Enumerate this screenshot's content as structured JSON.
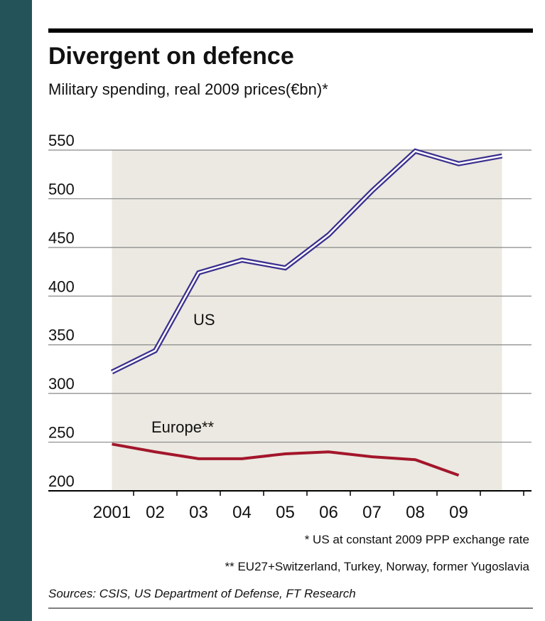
{
  "chart_data": {
    "type": "line",
    "title": "Divergent on defence",
    "subtitle": "Military spending, real 2009 prices(€bn)*",
    "categories": [
      "2001",
      "02",
      "03",
      "04",
      "05",
      "06",
      "07",
      "08",
      "09",
      null
    ],
    "series": [
      {
        "name": "US",
        "color": "#3b2f8f",
        "values": [
          322,
          344,
          424,
          437,
          429,
          463,
          508,
          549,
          536,
          544
        ]
      },
      {
        "name": "Europe**",
        "color": "#a3162b",
        "values": [
          248,
          240,
          233,
          233,
          238,
          240,
          235,
          232,
          216,
          null
        ]
      }
    ],
    "ylim": [
      200,
      550
    ],
    "yticks": [
      200,
      250,
      300,
      350,
      400,
      450,
      500,
      550
    ],
    "grid": true,
    "area_color": "#ebe9e1",
    "footnotes": [
      "* US at constant 2009 PPP exchange rate",
      "** EU27+Switzerland, Turkey, Norway, former Yugoslavia"
    ],
    "source": "Sources: CSIS, US Department of Defense, FT Research"
  }
}
